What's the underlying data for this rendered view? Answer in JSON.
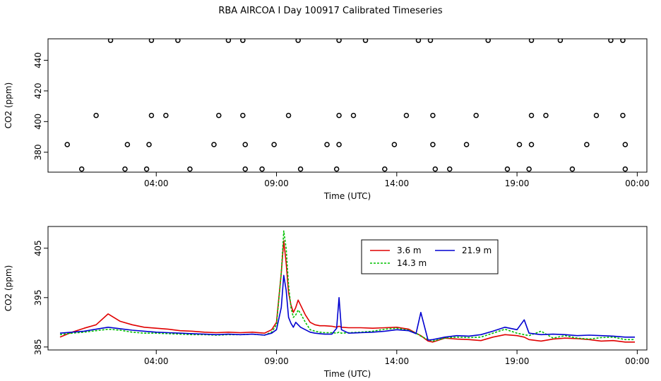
{
  "title": "RBA AIRCOA I  Day 100917  Calibrated Timeseries",
  "chart_data": [
    {
      "type": "scatter",
      "name": "top-panel",
      "xlabel": "Time (UTC)",
      "ylabel": "CO2 (ppm)",
      "xlim": [
        -0.5,
        24.4
      ],
      "ylim": [
        367,
        454
      ],
      "x_ticks": [
        {
          "value": 4,
          "label": "04:00"
        },
        {
          "value": 9,
          "label": "09:00"
        },
        {
          "value": 14,
          "label": "14:00"
        },
        {
          "value": 19,
          "label": "19:00"
        },
        {
          "value": 24,
          "label": "00:00"
        }
      ],
      "y_ticks": [
        {
          "value": 380,
          "label": "380"
        },
        {
          "value": 400,
          "label": "400"
        },
        {
          "value": 420,
          "label": "420"
        },
        {
          "value": 440,
          "label": "440"
        }
      ],
      "markers": {
        "x": [
          2.1,
          3.8,
          4.9,
          7.0,
          7.6,
          9.9,
          11.6,
          12.7,
          14.9,
          15.4,
          17.8,
          19.6,
          20.8,
          22.9,
          23.4,
          1.5,
          3.8,
          4.4,
          6.6,
          7.6,
          9.5,
          11.6,
          12.2,
          14.4,
          15.5,
          17.3,
          19.6,
          20.2,
          22.3,
          23.4,
          0.9,
          2.7,
          3.6,
          5.4,
          7.7,
          8.4,
          10.0,
          11.5,
          13.5,
          15.6,
          16.2,
          18.6,
          19.5,
          21.3,
          23.5,
          0.3,
          2.8,
          3.7,
          6.4,
          7.7,
          8.9,
          11.1,
          11.6,
          13.9,
          15.5,
          16.9,
          19.1,
          19.6,
          21.9,
          23.5
        ],
        "y": [
          453,
          453,
          453,
          453,
          453,
          453,
          453,
          453,
          453,
          453,
          453,
          453,
          453,
          453,
          453,
          404,
          404,
          404,
          404,
          404,
          404,
          404,
          404,
          404,
          404,
          404,
          404,
          404,
          404,
          404,
          369,
          369,
          369,
          369,
          369,
          369,
          369,
          369,
          369,
          369,
          369,
          369,
          369,
          369,
          369,
          385,
          385,
          385,
          385,
          385,
          385,
          385,
          385,
          385,
          385,
          385,
          385,
          385,
          385,
          385
        ]
      }
    },
    {
      "type": "line",
      "name": "bottom-panel",
      "xlabel": "Time (UTC)",
      "ylabel": "CO2 (ppm)",
      "xlim": [
        -0.5,
        24.4
      ],
      "ylim": [
        384.4,
        409.4
      ],
      "x_ticks": [
        {
          "value": 4,
          "label": "04:00"
        },
        {
          "value": 9,
          "label": "09:00"
        },
        {
          "value": 14,
          "label": "14:00"
        },
        {
          "value": 19,
          "label": "19:00"
        },
        {
          "value": 24,
          "label": "00:00"
        }
      ],
      "y_ticks": [
        {
          "value": 385,
          "label": "385"
        },
        {
          "value": 395,
          "label": "395"
        },
        {
          "value": 405,
          "label": "405"
        }
      ],
      "legend_position": "top-center",
      "x": [
        0,
        0.5,
        1.0,
        1.5,
        2.0,
        2.5,
        3.0,
        3.5,
        4.0,
        4.5,
        5.0,
        5.5,
        6.0,
        6.5,
        7.0,
        7.5,
        8.0,
        8.5,
        8.8,
        9.0,
        9.2,
        9.3,
        9.4,
        9.5,
        9.6,
        9.7,
        9.8,
        9.9,
        10.0,
        10.2,
        10.4,
        10.6,
        10.8,
        11.0,
        11.3,
        11.5,
        11.6,
        11.7,
        12.0,
        12.5,
        13.0,
        13.5,
        14.0,
        14.5,
        14.8,
        15.0,
        15.3,
        15.5,
        16.0,
        16.5,
        17.0,
        17.5,
        18.0,
        18.5,
        19.0,
        19.3,
        19.5,
        20.0,
        20.5,
        21.0,
        21.5,
        22.0,
        22.5,
        23.0,
        23.5,
        23.9
      ],
      "series": [
        {
          "name": "3.6 m",
          "color": "#e00000",
          "dash": "solid",
          "values": [
            387.0,
            388.0,
            388.8,
            389.5,
            391.7,
            390.2,
            389.5,
            389.0,
            388.8,
            388.6,
            388.3,
            388.2,
            388.0,
            387.9,
            388.0,
            387.9,
            388.0,
            387.8,
            388.5,
            390.0,
            400.0,
            406.5,
            402.0,
            396.0,
            393.5,
            392.0,
            393.0,
            394.5,
            393.5,
            391.5,
            390.0,
            389.5,
            389.3,
            389.3,
            389.2,
            389.0,
            389.2,
            389.0,
            388.9,
            388.9,
            388.8,
            388.9,
            389.0,
            388.6,
            387.8,
            387.3,
            386.2,
            386.0,
            386.8,
            386.6,
            386.5,
            386.3,
            387.0,
            387.5,
            387.3,
            387.0,
            386.5,
            386.2,
            386.6,
            386.8,
            386.7,
            386.5,
            386.2,
            386.3,
            386.0,
            386.0
          ]
        },
        {
          "name": "14.3 m",
          "color": "#00c000",
          "dash": "3,2",
          "values": [
            387.5,
            387.8,
            388.0,
            388.3,
            388.6,
            388.4,
            388.0,
            387.8,
            387.8,
            387.7,
            387.6,
            387.5,
            387.5,
            387.4,
            387.5,
            387.5,
            387.6,
            387.4,
            388.0,
            389.5,
            400.0,
            408.5,
            405.0,
            397.5,
            393.0,
            391.0,
            391.5,
            392.5,
            391.8,
            390.0,
            388.5,
            388.2,
            388.0,
            387.9,
            387.9,
            387.8,
            388.0,
            387.8,
            387.9,
            388.0,
            388.2,
            388.6,
            388.8,
            388.4,
            387.8,
            387.2,
            386.5,
            386.2,
            386.8,
            387.0,
            386.9,
            387.0,
            387.8,
            388.6,
            387.8,
            387.5,
            387.3,
            388.2,
            386.8,
            387.3,
            386.8,
            386.6,
            386.9,
            387.0,
            386.5,
            386.5
          ]
        },
        {
          "name": "21.9 m",
          "color": "#0000d0",
          "dash": "solid",
          "values": [
            387.8,
            388.0,
            388.2,
            388.6,
            389.0,
            388.7,
            388.4,
            388.2,
            388.0,
            387.9,
            387.8,
            387.7,
            387.6,
            387.5,
            387.6,
            387.5,
            387.6,
            387.4,
            387.8,
            388.5,
            393.0,
            399.5,
            396.5,
            391.0,
            389.8,
            389.0,
            390.0,
            389.5,
            389.0,
            388.5,
            388.0,
            387.8,
            387.7,
            387.6,
            387.6,
            388.8,
            395.0,
            388.5,
            387.8,
            387.9,
            388.0,
            388.2,
            388.5,
            388.3,
            387.7,
            392.0,
            386.4,
            386.5,
            387.0,
            387.3,
            387.2,
            387.5,
            388.2,
            389.0,
            388.5,
            390.5,
            387.8,
            387.5,
            387.6,
            387.5,
            387.3,
            387.4,
            387.3,
            387.2,
            387.0,
            387.0
          ]
        }
      ]
    }
  ]
}
